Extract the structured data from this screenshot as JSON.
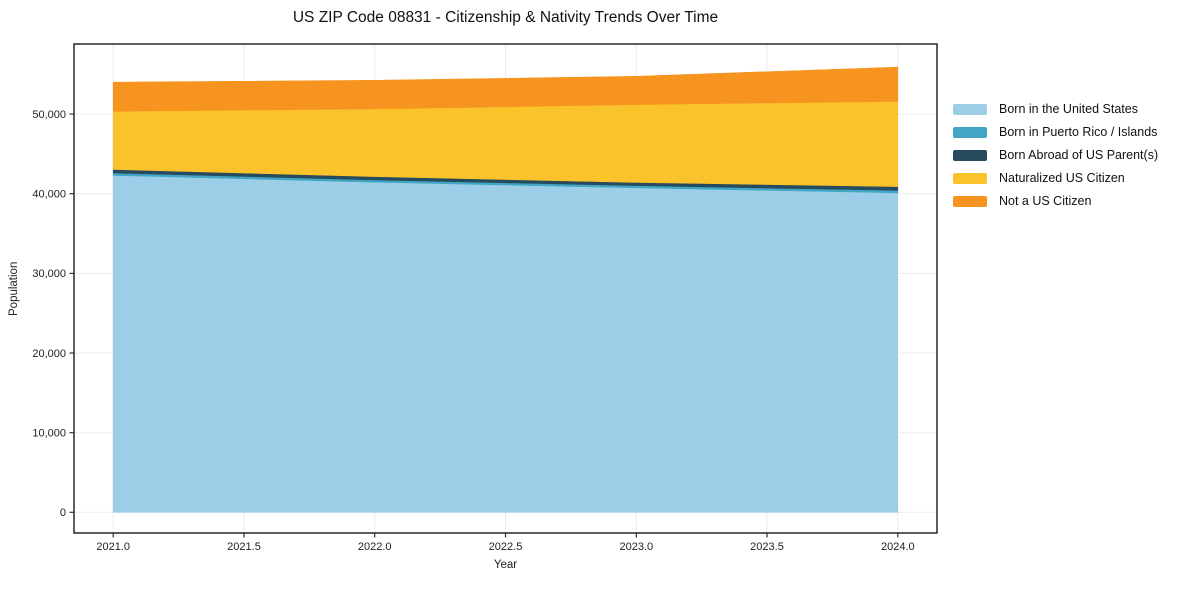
{
  "chart_data": {
    "type": "area",
    "stacked": true,
    "title": "US ZIP Code 08831 - Citizenship & Nativity Trends Over Time",
    "xlabel": "Year",
    "ylabel": "Population",
    "x": [
      2021,
      2022,
      2023,
      2024
    ],
    "series": [
      {
        "key": "born-in-us",
        "name": "Born in the United States",
        "color": "#9CCEE8",
        "values": [
          42300,
          41450,
          40750,
          40100
        ]
      },
      {
        "key": "born-puerto-rico",
        "name": "Born in Puerto Rico / Islands",
        "color": "#41A6C4",
        "values": [
          300,
          280,
          270,
          320
        ]
      },
      {
        "key": "born-abroad-us-parent",
        "name": "Born Abroad of US Parent(s)",
        "color": "#264A5E",
        "values": [
          450,
          420,
          400,
          480
        ]
      },
      {
        "key": "naturalized-citizen",
        "name": "Naturalized US Citizen",
        "color": "#FBC32B",
        "values": [
          7300,
          8500,
          9770,
          10700
        ]
      },
      {
        "key": "not-us-citizen",
        "name": "Not a US Citizen",
        "color": "#F7941F",
        "values": [
          3650,
          3590,
          3550,
          4300
        ]
      }
    ],
    "xlim": [
      2020.85,
      2024.15
    ],
    "ylim": [
      -2600,
      58800
    ],
    "x_ticks": {
      "values": [
        2021.0,
        2021.5,
        2022.0,
        2022.5,
        2023.0,
        2023.5,
        2024.0
      ],
      "labels": [
        "2021.0",
        "2021.5",
        "2022.0",
        "2022.5",
        "2023.0",
        "2023.5",
        "2024.0"
      ]
    },
    "y_ticks": {
      "values": [
        0,
        10000,
        20000,
        30000,
        40000,
        50000
      ],
      "labels": [
        "0",
        "10,000",
        "20,000",
        "30,000",
        "40,000",
        "50,000"
      ]
    },
    "grid": true,
    "legend_position": "right-of-plot",
    "style": {
      "grid_color": "#ebebeb",
      "spine_color": "#1a1a1a",
      "tick_color": "#333333",
      "text_color": "#222222"
    }
  }
}
